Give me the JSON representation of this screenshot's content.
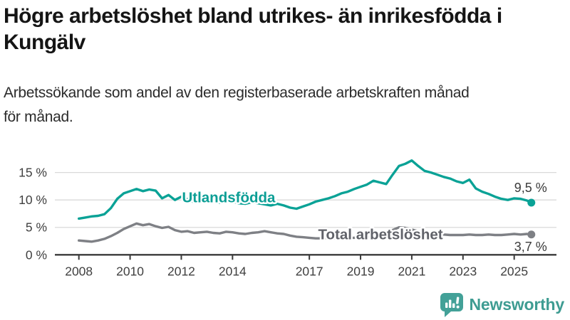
{
  "header": {
    "title": "Högre arbetslöshet bland utrikes- än inrikesfödda i Kungälv",
    "subtitle": "Arbetssökande som andel av den registerbaserade arbetskraften månad för månad."
  },
  "footer": {
    "brand": "Newsworthy",
    "brand_color": "#3E9C92",
    "logo_icon": "bar-chart-speech-bubble"
  },
  "colors": {
    "grid": "#d9d9d9",
    "axis": "#3a3a3a",
    "tick_label": "#404040",
    "value_label": "#3a3a3a",
    "background": "#ffffff"
  },
  "chart_data": {
    "type": "line",
    "x_unit": "year",
    "grid": "horizontal",
    "legend_position": "inline-labels",
    "ylim": [
      0,
      15
    ],
    "xlim": [
      2007.05,
      2026.6
    ],
    "yticks": [
      {
        "value": 0,
        "label": "0 %"
      },
      {
        "value": 5,
        "label": "5 %"
      },
      {
        "value": 10,
        "label": "10 %"
      },
      {
        "value": 15,
        "label": "15 %"
      }
    ],
    "xticks": [
      {
        "value": 2008,
        "label": "2008"
      },
      {
        "value": 2010,
        "label": "2010"
      },
      {
        "value": 2012,
        "label": "2012"
      },
      {
        "value": 2014,
        "label": "2014"
      },
      {
        "value": 2017,
        "label": "2017"
      },
      {
        "value": 2019,
        "label": "2019"
      },
      {
        "value": 2021,
        "label": "2021"
      },
      {
        "value": 2023,
        "label": "2023"
      },
      {
        "value": 2025,
        "label": "2025"
      }
    ],
    "series": [
      {
        "name": "Utlandsfödda",
        "color": "#0AA296",
        "label_color": "#0B9E95",
        "label_anchor": {
          "x": 2013.85,
          "y": 10.5
        },
        "end_label": "9,5 %",
        "end_value": 9.5,
        "end_label_position": "above",
        "points": [
          [
            2008,
            6.6
          ],
          [
            2008.25,
            6.8
          ],
          [
            2008.5,
            7.0
          ],
          [
            2008.75,
            7.1
          ],
          [
            2009,
            7.4
          ],
          [
            2009.25,
            8.5
          ],
          [
            2009.5,
            10.2
          ],
          [
            2009.75,
            11.2
          ],
          [
            2010,
            11.6
          ],
          [
            2010.25,
            12.0
          ],
          [
            2010.5,
            11.6
          ],
          [
            2010.75,
            11.9
          ],
          [
            2011,
            11.7
          ],
          [
            2011.25,
            10.3
          ],
          [
            2011.5,
            10.9
          ],
          [
            2011.75,
            10.0
          ],
          [
            2012,
            10.6
          ],
          [
            2012.25,
            10.1
          ],
          [
            2012.5,
            9.6
          ],
          [
            2012.75,
            10.2
          ],
          [
            2013,
            10.4
          ],
          [
            2013.25,
            9.8
          ],
          [
            2013.5,
            9.5
          ],
          [
            2013.75,
            9.9
          ],
          [
            2014,
            9.7
          ],
          [
            2014.25,
            9.4
          ],
          [
            2014.5,
            9.3
          ],
          [
            2014.75,
            9.6
          ],
          [
            2015,
            9.4
          ],
          [
            2015.25,
            9.2
          ],
          [
            2015.5,
            9.0
          ],
          [
            2015.75,
            9.3
          ],
          [
            2016,
            9.0
          ],
          [
            2016.25,
            8.6
          ],
          [
            2016.5,
            8.4
          ],
          [
            2016.75,
            8.8
          ],
          [
            2017,
            9.2
          ],
          [
            2017.25,
            9.7
          ],
          [
            2017.5,
            10.0
          ],
          [
            2017.75,
            10.3
          ],
          [
            2018,
            10.7
          ],
          [
            2018.25,
            11.2
          ],
          [
            2018.5,
            11.5
          ],
          [
            2018.75,
            12.0
          ],
          [
            2019,
            12.4
          ],
          [
            2019.25,
            12.8
          ],
          [
            2019.5,
            13.5
          ],
          [
            2019.75,
            13.2
          ],
          [
            2020,
            12.9
          ],
          [
            2020.25,
            14.6
          ],
          [
            2020.5,
            16.2
          ],
          [
            2020.75,
            16.6
          ],
          [
            2021,
            17.2
          ],
          [
            2021.25,
            16.2
          ],
          [
            2021.5,
            15.3
          ],
          [
            2021.75,
            15.0
          ],
          [
            2022,
            14.6
          ],
          [
            2022.25,
            14.2
          ],
          [
            2022.5,
            13.9
          ],
          [
            2022.75,
            13.4
          ],
          [
            2023,
            13.1
          ],
          [
            2023.25,
            13.7
          ],
          [
            2023.5,
            12.1
          ],
          [
            2023.75,
            11.5
          ],
          [
            2024,
            11.1
          ],
          [
            2024.25,
            10.6
          ],
          [
            2024.5,
            10.2
          ],
          [
            2024.75,
            10.0
          ],
          [
            2025,
            10.3
          ],
          [
            2025.25,
            10.2
          ],
          [
            2025.5,
            9.9
          ],
          [
            2025.67,
            9.5
          ]
        ]
      },
      {
        "name": "Total arbetslöshet",
        "color": "#7E8085",
        "label_color": "#606269",
        "label_anchor": {
          "x": 2019.78,
          "y": 3.75
        },
        "end_label": "3,7 %",
        "end_value": 3.7,
        "end_label_position": "below",
        "points": [
          [
            2008,
            2.6
          ],
          [
            2008.25,
            2.5
          ],
          [
            2008.5,
            2.4
          ],
          [
            2008.75,
            2.6
          ],
          [
            2009,
            2.9
          ],
          [
            2009.25,
            3.4
          ],
          [
            2009.5,
            4.0
          ],
          [
            2009.75,
            4.7
          ],
          [
            2010,
            5.2
          ],
          [
            2010.25,
            5.7
          ],
          [
            2010.5,
            5.4
          ],
          [
            2010.75,
            5.6
          ],
          [
            2011,
            5.2
          ],
          [
            2011.25,
            4.9
          ],
          [
            2011.5,
            5.1
          ],
          [
            2011.75,
            4.5
          ],
          [
            2012,
            4.2
          ],
          [
            2012.25,
            4.3
          ],
          [
            2012.5,
            4.0
          ],
          [
            2012.75,
            4.1
          ],
          [
            2013,
            4.2
          ],
          [
            2013.25,
            4.0
          ],
          [
            2013.5,
            3.9
          ],
          [
            2013.75,
            4.2
          ],
          [
            2014,
            4.1
          ],
          [
            2014.25,
            3.9
          ],
          [
            2014.5,
            3.8
          ],
          [
            2014.75,
            4.0
          ],
          [
            2015,
            4.1
          ],
          [
            2015.25,
            4.3
          ],
          [
            2015.5,
            4.1
          ],
          [
            2015.75,
            3.9
          ],
          [
            2016,
            3.8
          ],
          [
            2016.25,
            3.5
          ],
          [
            2016.5,
            3.3
          ],
          [
            2016.75,
            3.2
          ],
          [
            2017,
            3.1
          ],
          [
            2017.25,
            3.0
          ],
          [
            2017.5,
            3.0
          ],
          [
            2017.75,
            3.1
          ],
          [
            2018,
            3.0
          ],
          [
            2018.25,
            3.0
          ],
          [
            2018.5,
            3.1
          ],
          [
            2018.75,
            3.1
          ],
          [
            2019,
            3.2
          ],
          [
            2019.25,
            3.3
          ],
          [
            2019.5,
            3.3
          ],
          [
            2019.75,
            3.4
          ],
          [
            2020,
            3.6
          ],
          [
            2020.25,
            4.5
          ],
          [
            2020.5,
            5.0
          ],
          [
            2020.75,
            4.9
          ],
          [
            2021,
            4.6
          ],
          [
            2021.25,
            4.3
          ],
          [
            2021.5,
            4.0
          ],
          [
            2021.75,
            3.9
          ],
          [
            2022,
            3.8
          ],
          [
            2022.25,
            3.7
          ],
          [
            2022.5,
            3.6
          ],
          [
            2022.75,
            3.6
          ],
          [
            2023,
            3.6
          ],
          [
            2023.25,
            3.7
          ],
          [
            2023.5,
            3.6
          ],
          [
            2023.75,
            3.6
          ],
          [
            2024,
            3.7
          ],
          [
            2024.25,
            3.6
          ],
          [
            2024.5,
            3.6
          ],
          [
            2024.75,
            3.7
          ],
          [
            2025,
            3.8
          ],
          [
            2025.25,
            3.7
          ],
          [
            2025.5,
            3.8
          ],
          [
            2025.67,
            3.7
          ]
        ]
      }
    ]
  }
}
